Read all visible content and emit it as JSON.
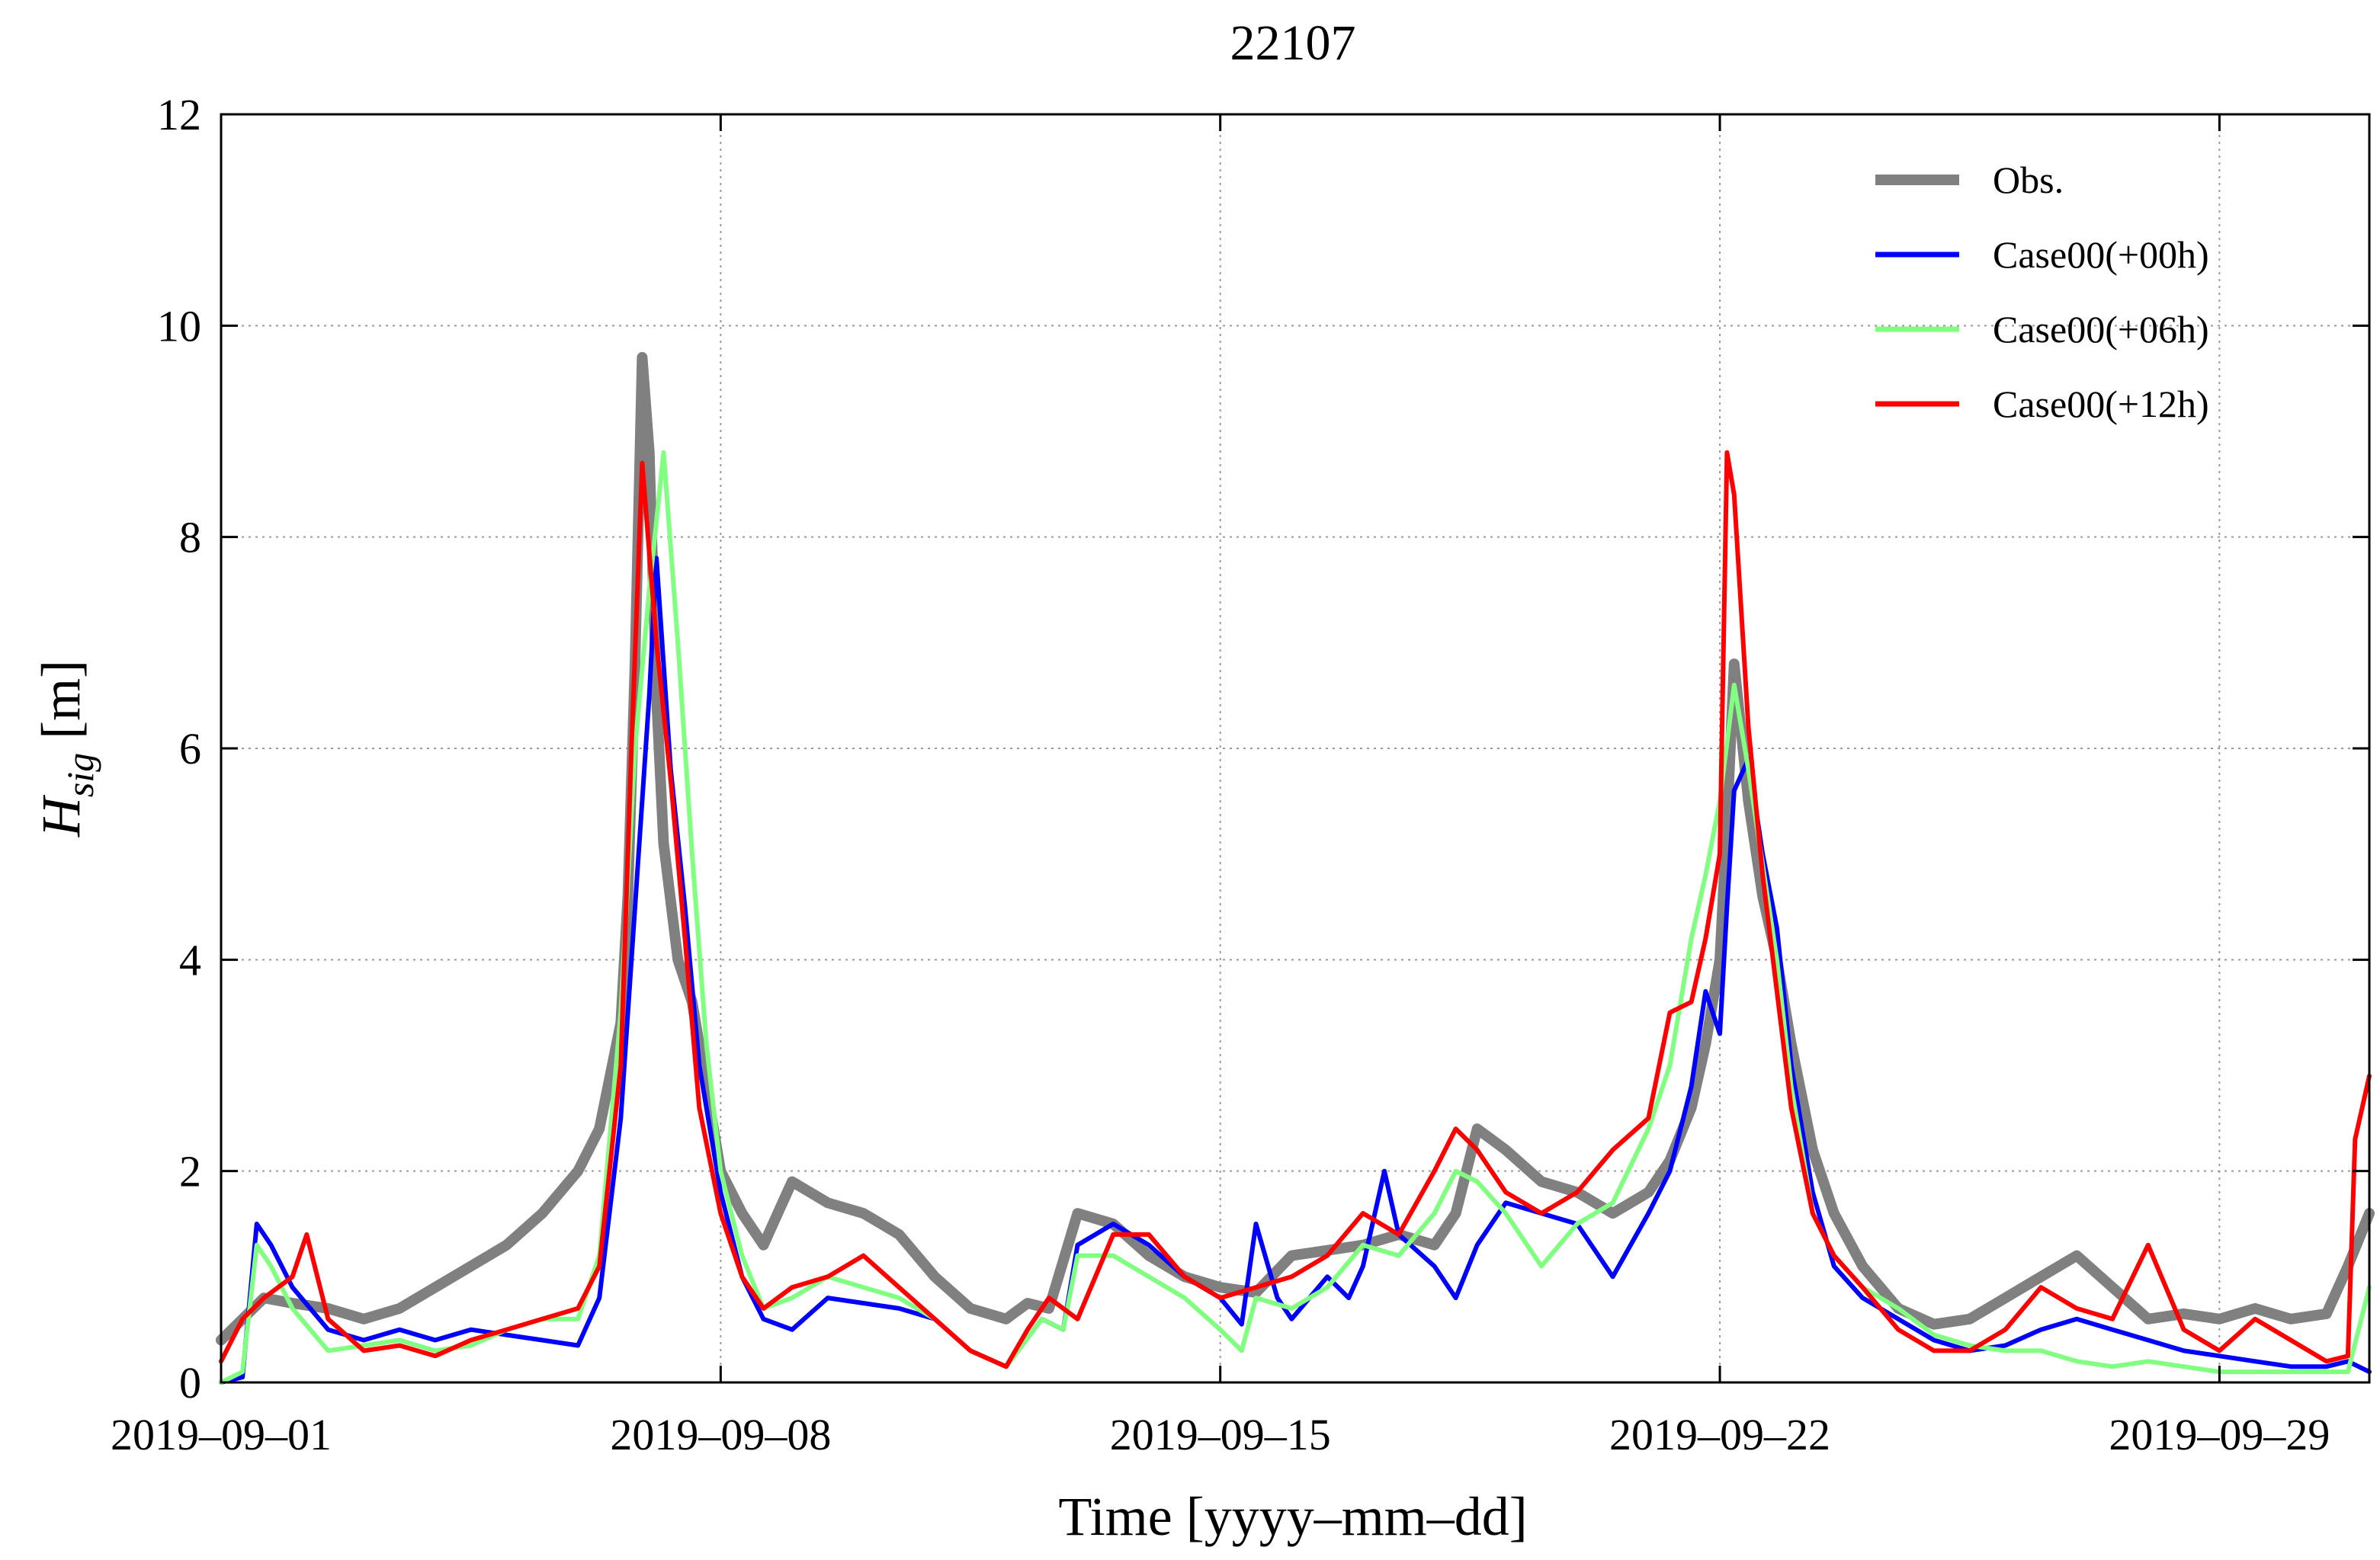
{
  "chart_data": {
    "type": "line",
    "title": "22107",
    "xlabel": "Time [yyyy–mm–dd]",
    "ylabel_main": "H",
    "ylabel_sub": "sig",
    "ylabel_unit": "[m]",
    "x_unit": "days since 2019-09-01 00:00",
    "xlim": [
      0,
      30.1
    ],
    "ylim": [
      0,
      12
    ],
    "xticks": [
      {
        "value": 0,
        "label": "2019–09–01"
      },
      {
        "value": 7,
        "label": "2019–09–08"
      },
      {
        "value": 14,
        "label": "2019–09–15"
      },
      {
        "value": 21,
        "label": "2019–09–22"
      },
      {
        "value": 28,
        "label": "2019–09–29"
      }
    ],
    "yticks": [
      {
        "value": 0,
        "label": "0"
      },
      {
        "value": 2,
        "label": "2"
      },
      {
        "value": 4,
        "label": "4"
      },
      {
        "value": 6,
        "label": "6"
      },
      {
        "value": 8,
        "label": "8"
      },
      {
        "value": 10,
        "label": "10"
      },
      {
        "value": 12,
        "label": "12"
      }
    ],
    "grid": true,
    "legend_position": "top-right",
    "series": [
      {
        "name": "Obs.",
        "color": "#808080",
        "x": [
          0,
          0.3,
          0.6,
          1.0,
          1.5,
          2.0,
          2.5,
          3.0,
          3.5,
          4.0,
          4.5,
          5.0,
          5.3,
          5.6,
          5.7,
          5.8,
          5.9,
          6.0,
          6.1,
          6.2,
          6.4,
          6.6,
          6.8,
          7.0,
          7.3,
          7.6,
          7.8,
          8.0,
          8.5,
          9.0,
          9.5,
          10.0,
          10.5,
          11.0,
          11.3,
          11.6,
          12.0,
          12.5,
          13.0,
          13.5,
          14.0,
          14.5,
          15.0,
          15.5,
          16.0,
          16.5,
          17.0,
          17.3,
          17.6,
          18.0,
          18.5,
          19.0,
          19.5,
          20.0,
          20.3,
          20.6,
          20.8,
          21.0,
          21.1,
          21.2,
          21.4,
          21.6,
          21.8,
          22.0,
          22.3,
          22.6,
          23.0,
          23.5,
          24.0,
          24.5,
          25.0,
          25.5,
          26.0,
          26.5,
          27.0,
          27.5,
          28.0,
          28.5,
          29.0,
          29.5,
          29.8,
          30.1
        ],
        "values": [
          0.4,
          0.6,
          0.8,
          0.75,
          0.7,
          0.6,
          0.7,
          0.9,
          1.1,
          1.3,
          1.6,
          2.0,
          2.4,
          3.4,
          4.6,
          6.8,
          9.7,
          8.8,
          6.5,
          5.1,
          4.0,
          3.6,
          2.8,
          2.0,
          1.6,
          1.3,
          1.6,
          1.9,
          1.7,
          1.6,
          1.4,
          1.0,
          0.7,
          0.6,
          0.75,
          0.7,
          1.6,
          1.5,
          1.2,
          1.0,
          0.9,
          0.85,
          1.2,
          1.25,
          1.3,
          1.4,
          1.3,
          1.6,
          2.4,
          2.2,
          1.9,
          1.8,
          1.6,
          1.8,
          2.1,
          2.6,
          3.2,
          4.0,
          5.3,
          6.8,
          5.5,
          4.6,
          4.0,
          3.2,
          2.2,
          1.6,
          1.1,
          0.7,
          0.55,
          0.6,
          0.8,
          1.0,
          1.2,
          0.9,
          0.6,
          0.65,
          0.6,
          0.7,
          0.6,
          0.65,
          1.1,
          1.6
        ]
      },
      {
        "name": "Case00(+00h)",
        "color": "#0000ff",
        "x": [
          0,
          0.3,
          0.5,
          0.7,
          1.0,
          1.5,
          2.0,
          2.5,
          3.0,
          3.5,
          4.0,
          4.5,
          5.0,
          5.3,
          5.6,
          5.8,
          6.0,
          6.1,
          6.3,
          6.5,
          6.7,
          7.0,
          7.3,
          7.6,
          8.0,
          8.5,
          9.0,
          9.5,
          10.0,
          10.5,
          11.0,
          11.5,
          11.8,
          12.0,
          12.5,
          13.0,
          13.5,
          14.0,
          14.3,
          14.5,
          14.8,
          15.0,
          15.5,
          15.8,
          16.0,
          16.3,
          16.5,
          17.0,
          17.3,
          17.6,
          18.0,
          18.5,
          19.0,
          19.5,
          20.0,
          20.3,
          20.6,
          20.8,
          21.0,
          21.1,
          21.2,
          21.4,
          21.6,
          21.8,
          22.0,
          22.3,
          22.6,
          23.0,
          23.5,
          24.0,
          24.5,
          25.0,
          25.5,
          26.0,
          26.5,
          27.0,
          27.5,
          28.0,
          28.5,
          29.0,
          29.5,
          29.8,
          30.1
        ],
        "values": [
          0.0,
          0.05,
          1.5,
          1.3,
          0.9,
          0.5,
          0.4,
          0.5,
          0.4,
          0.5,
          0.45,
          0.4,
          0.35,
          0.8,
          2.5,
          4.5,
          6.5,
          7.8,
          5.8,
          4.5,
          3.0,
          1.8,
          1.0,
          0.6,
          0.5,
          0.8,
          0.75,
          0.7,
          0.6,
          0.3,
          0.15,
          0.6,
          0.5,
          1.3,
          1.5,
          1.3,
          1.0,
          0.8,
          0.55,
          1.5,
          0.8,
          0.6,
          1.0,
          0.8,
          1.1,
          2.0,
          1.4,
          1.1,
          0.8,
          1.3,
          1.7,
          1.6,
          1.5,
          1.0,
          1.6,
          2.0,
          2.8,
          3.7,
          3.3,
          4.5,
          5.6,
          5.9,
          5.0,
          4.3,
          3.0,
          1.8,
          1.1,
          0.8,
          0.6,
          0.4,
          0.3,
          0.35,
          0.5,
          0.6,
          0.5,
          0.4,
          0.3,
          0.25,
          0.2,
          0.15,
          0.15,
          0.2,
          0.1
        ]
      },
      {
        "name": "Case00(+06h)",
        "color": "#80ff80",
        "x": [
          0,
          0.3,
          0.5,
          0.7,
          1.0,
          1.5,
          2.0,
          2.5,
          3.0,
          3.5,
          4.0,
          4.5,
          5.0,
          5.3,
          5.6,
          5.8,
          6.0,
          6.2,
          6.4,
          6.6,
          6.8,
          7.0,
          7.3,
          7.6,
          8.0,
          8.5,
          9.0,
          9.5,
          10.0,
          10.5,
          11.0,
          11.5,
          11.8,
          12.0,
          12.5,
          13.0,
          13.5,
          14.0,
          14.3,
          14.5,
          15.0,
          15.5,
          16.0,
          16.5,
          17.0,
          17.3,
          17.6,
          18.0,
          18.5,
          19.0,
          19.5,
          20.0,
          20.3,
          20.6,
          20.8,
          21.0,
          21.2,
          21.4,
          21.6,
          21.8,
          22.0,
          22.3,
          22.6,
          23.0,
          23.5,
          24.0,
          24.5,
          25.0,
          25.5,
          26.0,
          26.5,
          27.0,
          27.5,
          28.0,
          28.5,
          29.0,
          29.5,
          29.8,
          30.1
        ],
        "values": [
          0.0,
          0.1,
          1.3,
          1.1,
          0.7,
          0.3,
          0.35,
          0.4,
          0.3,
          0.35,
          0.5,
          0.6,
          0.6,
          1.2,
          3.5,
          6.0,
          7.5,
          8.8,
          7.0,
          5.0,
          3.2,
          2.0,
          1.2,
          0.7,
          0.8,
          1.0,
          0.9,
          0.8,
          0.6,
          0.3,
          0.15,
          0.6,
          0.5,
          1.2,
          1.2,
          1.0,
          0.8,
          0.5,
          0.3,
          0.8,
          0.7,
          0.9,
          1.3,
          1.2,
          1.6,
          2.0,
          1.9,
          1.6,
          1.1,
          1.5,
          1.7,
          2.4,
          3.0,
          4.2,
          4.8,
          5.5,
          6.6,
          5.8,
          4.9,
          4.0,
          2.8,
          1.6,
          1.2,
          0.9,
          0.7,
          0.45,
          0.35,
          0.3,
          0.3,
          0.2,
          0.15,
          0.2,
          0.15,
          0.1,
          0.1,
          0.1,
          0.1,
          0.1,
          0.9
        ]
      },
      {
        "name": "Case00(+12h)",
        "color": "#ff0000",
        "x": [
          0,
          0.3,
          0.6,
          1.0,
          1.2,
          1.5,
          2.0,
          2.5,
          3.0,
          3.5,
          4.0,
          4.5,
          5.0,
          5.3,
          5.6,
          5.75,
          5.9,
          6.1,
          6.3,
          6.5,
          6.7,
          7.0,
          7.3,
          7.6,
          8.0,
          8.5,
          9.0,
          9.5,
          10.0,
          10.5,
          11.0,
          11.3,
          11.6,
          12.0,
          12.5,
          13.0,
          13.5,
          14.0,
          14.5,
          15.0,
          15.5,
          16.0,
          16.5,
          17.0,
          17.3,
          17.6,
          18.0,
          18.5,
          19.0,
          19.5,
          20.0,
          20.3,
          20.6,
          20.8,
          21.0,
          21.1,
          21.2,
          21.4,
          21.6,
          21.8,
          22.0,
          22.3,
          22.6,
          23.0,
          23.5,
          24.0,
          24.5,
          25.0,
          25.5,
          26.0,
          26.5,
          27.0,
          27.5,
          28.0,
          28.5,
          29.0,
          29.5,
          29.8,
          29.9,
          30.1
        ],
        "values": [
          0.2,
          0.6,
          0.8,
          1.0,
          1.4,
          0.6,
          0.3,
          0.35,
          0.25,
          0.4,
          0.5,
          0.6,
          0.7,
          1.1,
          3.0,
          6.0,
          8.7,
          7.0,
          5.7,
          4.2,
          2.6,
          1.6,
          1.0,
          0.7,
          0.9,
          1.0,
          1.2,
          0.9,
          0.6,
          0.3,
          0.15,
          0.5,
          0.8,
          0.6,
          1.4,
          1.4,
          1.0,
          0.8,
          0.9,
          1.0,
          1.2,
          1.6,
          1.4,
          2.0,
          2.4,
          2.2,
          1.8,
          1.6,
          1.8,
          2.2,
          2.5,
          3.5,
          3.6,
          4.2,
          5.0,
          8.8,
          8.4,
          6.2,
          4.8,
          3.7,
          2.6,
          1.6,
          1.2,
          0.9,
          0.5,
          0.3,
          0.3,
          0.5,
          0.9,
          0.7,
          0.6,
          1.3,
          0.5,
          0.3,
          0.6,
          0.4,
          0.2,
          0.25,
          2.3,
          2.9
        ]
      }
    ]
  }
}
